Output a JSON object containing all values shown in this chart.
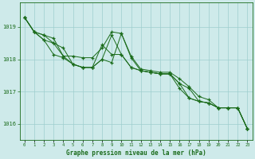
{
  "title": "Graphe pression niveau de la mer (hPa)",
  "background_color": "#ceeaea",
  "plot_bg_color": "#ceeaea",
  "grid_color": "#9ecece",
  "line_color": "#1a6b1a",
  "ylim": [
    1015.5,
    1019.75
  ],
  "yticks": [
    1016,
    1017,
    1018,
    1019
  ],
  "xlim": [
    -0.5,
    23.5
  ],
  "series": {
    "line1": [
      1019.3,
      1018.85,
      1018.75,
      1018.65,
      1018.1,
      1018.1,
      1018.05,
      1018.05,
      1018.35,
      1018.85,
      1018.8,
      1018.1,
      1017.7,
      1017.65,
      1017.6,
      1017.6,
      1017.4,
      1017.15,
      1016.85,
      1016.75,
      1016.5,
      1016.5,
      1016.5,
      1015.85
    ],
    "line2": [
      1019.3,
      1018.85,
      1018.75,
      1018.5,
      1018.1,
      1017.85,
      1017.75,
      1017.75,
      1018.0,
      1018.75,
      1018.15,
      1017.75,
      1017.65,
      1017.6,
      1017.55,
      1017.55,
      1017.25,
      1016.8,
      1016.7,
      1016.65,
      1016.5,
      1016.5,
      1016.5,
      1015.85
    ],
    "line3": [
      1019.3,
      1018.85,
      1018.6,
      1018.5,
      1018.35,
      1017.85,
      1017.75,
      1017.75,
      1018.45,
      1018.15,
      1018.15,
      1017.75,
      1017.65,
      1017.6,
      1017.55,
      1017.55,
      1017.25,
      1017.1,
      1016.7,
      1016.65,
      1016.5,
      1016.5,
      1016.5,
      1015.85
    ],
    "line4": [
      1019.3,
      1018.85,
      1018.6,
      1018.15,
      1018.05,
      1017.85,
      1017.75,
      1017.75,
      1018.0,
      1017.9,
      1018.8,
      1018.05,
      1017.65,
      1017.6,
      1017.55,
      1017.55,
      1017.1,
      1016.8,
      1016.7,
      1016.65,
      1016.5,
      1016.5,
      1016.5,
      1015.85
    ]
  }
}
